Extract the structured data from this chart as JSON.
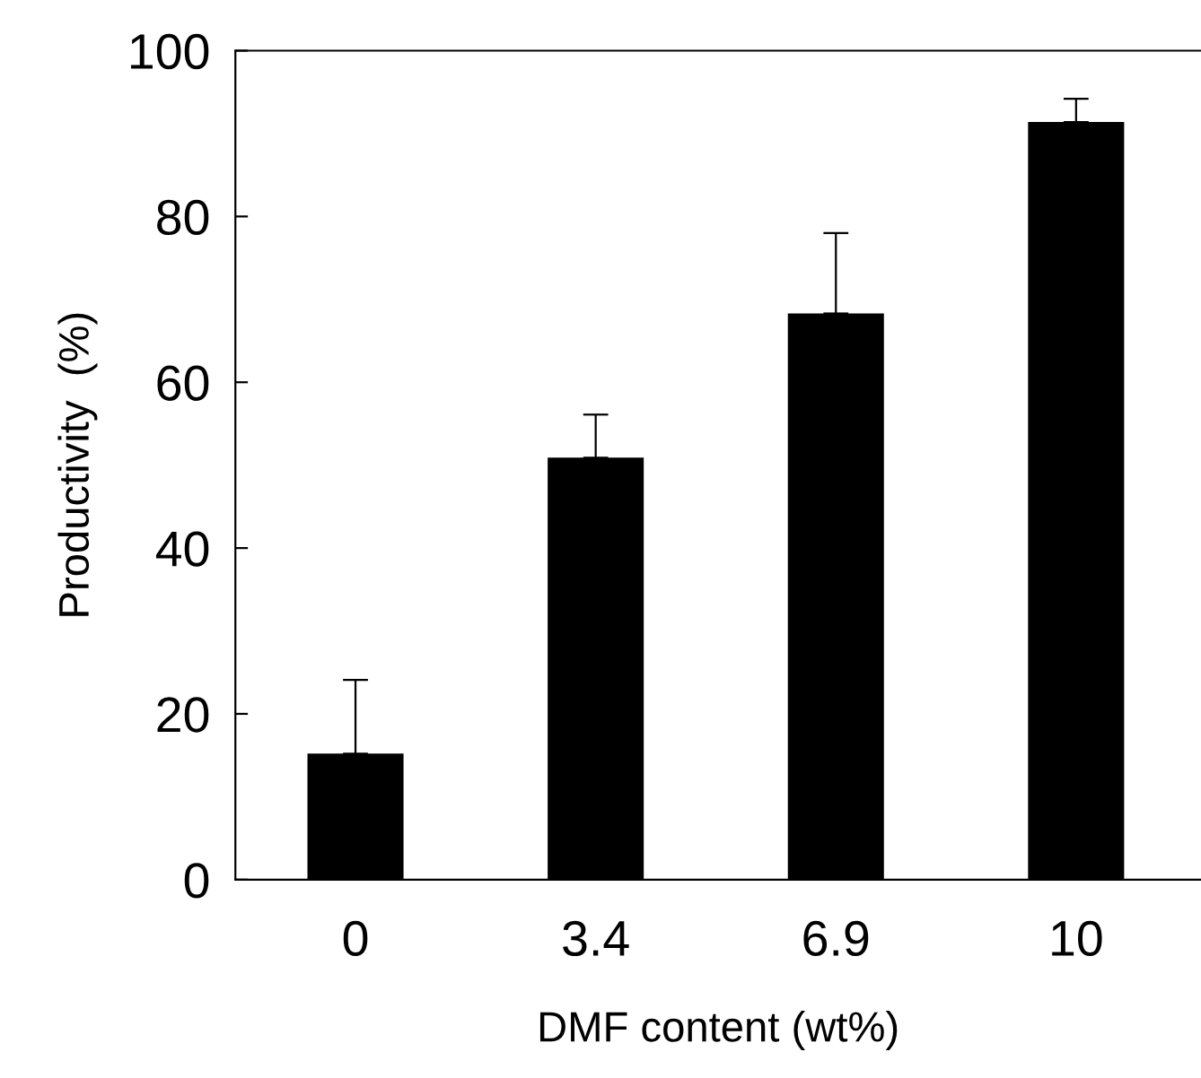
{
  "chart_data": {
    "type": "bar",
    "xlabel": "DMF content (wt%)",
    "ylabel": "Productivity  (%)",
    "categories": [
      "0",
      "3.4",
      "6.9",
      "10"
    ],
    "values": [
      15.2,
      50.9,
      68.3,
      91.4
    ],
    "color": "#000000",
    "errors": [
      [
        15.2,
        24.1
      ],
      [
        50.9,
        56.1
      ],
      [
        68.3,
        78.0
      ],
      [
        91.4,
        94.2
      ]
    ],
    "ylim": [
      0,
      100
    ],
    "yticks": [
      0,
      20,
      40,
      60,
      80,
      100
    ],
    "grid": false,
    "legend": false
  }
}
